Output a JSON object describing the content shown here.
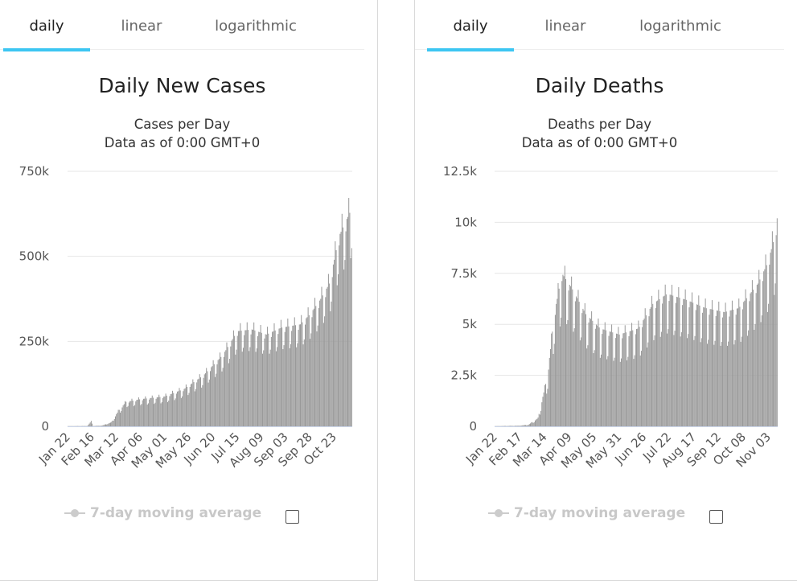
{
  "panels": [
    {
      "tabs": [
        {
          "label": "daily",
          "active": true
        },
        {
          "label": "linear",
          "active": false
        },
        {
          "label": "logarithmic",
          "active": false
        }
      ],
      "title": "Daily New Cases",
      "subtitle": "Cases per Day",
      "subtitle2": "Data as of 0:00 GMT+0",
      "legend_label": "7-day moving average"
    },
    {
      "tabs": [
        {
          "label": "daily",
          "active": true
        },
        {
          "label": "linear",
          "active": false
        },
        {
          "label": "logarithmic",
          "active": false
        }
      ],
      "title": "Daily Deaths",
      "subtitle": "Deaths per Day",
      "subtitle2": "Data as of 0:00 GMT+0",
      "legend_label": "7-day moving average"
    }
  ],
  "colors": {
    "bar": "#999999",
    "axis_line": "#ccd6eb",
    "grid": "#e6e6e6",
    "tab_underline": "#3cc6f2",
    "legend_disabled": "#cccccc"
  },
  "chart_data": [
    {
      "type": "bar",
      "title": "Daily New Cases",
      "subtitle": "Cases per Day",
      "series": [
        {
          "name": "",
          "start_date": "Jan 22",
          "days": 294,
          "values": []
        }
      ],
      "keyframes": [
        [
          0,
          600
        ],
        [
          20,
          1000
        ],
        [
          24,
          15000
        ],
        [
          26,
          1000
        ],
        [
          35,
          2000
        ],
        [
          45,
          12000
        ],
        [
          52,
          45000
        ],
        [
          60,
          72000
        ],
        [
          75,
          80000
        ],
        [
          100,
          88000
        ],
        [
          120,
          110000
        ],
        [
          140,
          150000
        ],
        [
          160,
          210000
        ],
        [
          175,
          280000
        ],
        [
          190,
          285000
        ],
        [
          205,
          270000
        ],
        [
          220,
          290000
        ],
        [
          240,
          300000
        ],
        [
          250,
          330000
        ],
        [
          260,
          370000
        ],
        [
          270,
          420000
        ],
        [
          280,
          560000
        ],
        [
          288,
          610000
        ],
        [
          293,
          640000
        ]
      ],
      "weekly_dip": 0.78,
      "xticks": [
        "Jan 22",
        "Feb 16",
        "Mar 12",
        "Apr 06",
        "May 01",
        "May 26",
        "Jun 20",
        "Jul 15",
        "Aug 09",
        "Sep 03",
        "Sep 28",
        "Oct 23"
      ],
      "xtick_days": [
        0,
        25,
        50,
        75,
        100,
        125,
        150,
        175,
        200,
        225,
        250,
        275
      ],
      "yticks": [
        "0",
        "250k",
        "500k",
        "750k"
      ],
      "ytick_values": [
        0,
        250000,
        500000,
        750000
      ],
      "ylim": [
        0,
        750000
      ],
      "grid": true
    },
    {
      "type": "bar",
      "title": "Daily Deaths",
      "subtitle": "Deaths per Day",
      "series": [
        {
          "name": "",
          "start_date": "Jan 22",
          "days": 296,
          "values": []
        }
      ],
      "keyframes": [
        [
          0,
          10
        ],
        [
          25,
          30
        ],
        [
          35,
          80
        ],
        [
          45,
          400
        ],
        [
          55,
          2500
        ],
        [
          62,
          5500
        ],
        [
          70,
          7500
        ],
        [
          80,
          6800
        ],
        [
          95,
          5500
        ],
        [
          110,
          4800
        ],
        [
          130,
          4500
        ],
        [
          150,
          4800
        ],
        [
          165,
          6000
        ],
        [
          180,
          6500
        ],
        [
          200,
          6200
        ],
        [
          220,
          5800
        ],
        [
          240,
          5600
        ],
        [
          255,
          5800
        ],
        [
          265,
          6400
        ],
        [
          275,
          7000
        ],
        [
          285,
          8000
        ],
        [
          292,
          9200
        ],
        [
          295,
          10200
        ]
      ],
      "weekly_dip": 0.7,
      "xticks": [
        "Jan 22",
        "Feb 17",
        "Mar 14",
        "Apr 09",
        "May 05",
        "May 31",
        "Jun 26",
        "Jul 22",
        "Aug 17",
        "Sep 12",
        "Oct 08",
        "Nov 03"
      ],
      "xtick_days": [
        0,
        26,
        52,
        78,
        104,
        130,
        156,
        182,
        208,
        234,
        260,
        286
      ],
      "yticks": [
        "0",
        "2.5k",
        "5k",
        "7.5k",
        "10k",
        "12.5k"
      ],
      "ytick_values": [
        0,
        2500,
        5000,
        7500,
        10000,
        12500
      ],
      "ylim": [
        0,
        12500
      ],
      "grid": true
    }
  ]
}
